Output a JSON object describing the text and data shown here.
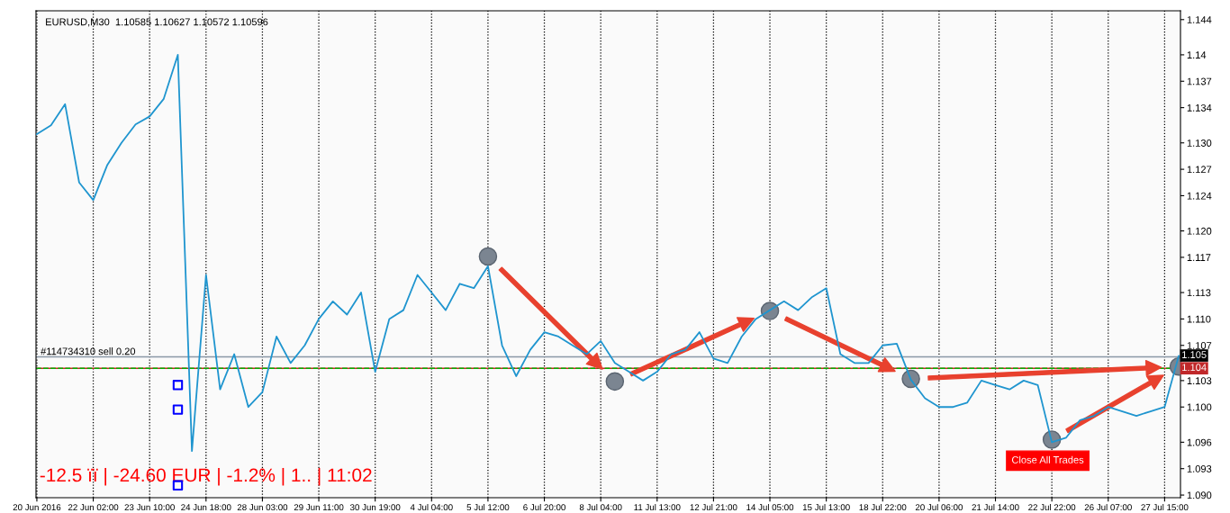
{
  "chart_data": {
    "type": "line",
    "categories": [
      "20 Jun 2016",
      null,
      null,
      null,
      "22 Jun 02:00",
      null,
      null,
      null,
      "23 Jun 10:00",
      null,
      null,
      null,
      "24 Jun 18:00",
      null,
      null,
      null,
      "28 Jun 03:00",
      null,
      null,
      null,
      "29 Jun 11:00",
      null,
      null,
      null,
      "30 Jun 19:00",
      null,
      null,
      null,
      "4 Jul 04:00",
      null,
      null,
      null,
      "5 Jul 12:00",
      null,
      null,
      null,
      "6 Jul 20:00",
      null,
      null,
      null,
      "8 Jul 04:00",
      null,
      null,
      null,
      "11 Jul 13:00",
      null,
      null,
      null,
      "12 Jul 21:00",
      null,
      null,
      null,
      "14 Jul 05:00",
      null,
      null,
      null,
      "15 Jul 13:00",
      null,
      null,
      null,
      "18 Jul 22:00",
      null,
      null,
      null,
      "20 Jul 06:00",
      null,
      null,
      null,
      "21 Jul 14:00",
      null,
      null,
      null,
      "22 Jul 22:00",
      null,
      null,
      null,
      "26 Jul 07:00",
      null,
      null,
      null,
      "27 Jul 15:00",
      null
    ],
    "series": [
      {
        "color": "#1f95cf",
        "values": [
          1.131,
          1.132,
          1.1344,
          1.1255,
          1.1235,
          1.1275,
          1.13,
          1.1321,
          1.133,
          1.135,
          1.14,
          1.095,
          1.115,
          1.102,
          1.106,
          1.1,
          1.1017,
          1.108,
          1.105,
          1.107,
          1.11,
          1.112,
          1.1105,
          1.113,
          1.104,
          1.11,
          1.111,
          1.115,
          1.113,
          1.111,
          1.114,
          1.1135,
          1.116,
          1.107,
          1.1035,
          1.1065,
          1.1085,
          1.108,
          1.107,
          1.106,
          1.1075,
          1.105,
          1.104,
          1.103,
          1.104,
          1.106,
          1.1065,
          1.1085,
          1.1055,
          1.105,
          1.108,
          1.11,
          1.111,
          1.112,
          1.111,
          1.1125,
          1.1135,
          1.106,
          1.105,
          1.105,
          1.107,
          1.1072,
          1.1031,
          1.101,
          1.1,
          1.1,
          1.1005,
          1.103,
          1.1025,
          1.102,
          1.103,
          1.1025,
          1.096,
          1.0965,
          1.0985,
          1.099,
          1.1,
          1.0995,
          1.099,
          1.0995,
          1.1,
          1.1058
        ]
      },
      {
        "type": "scatter",
        "color": "#7b8591",
        "marker": "circle",
        "values": [
          null,
          null,
          null,
          null,
          null,
          null,
          null,
          null,
          null,
          null,
          null,
          null,
          null,
          null,
          null,
          null,
          null,
          null,
          null,
          null,
          null,
          null,
          null,
          null,
          null,
          null,
          null,
          null,
          null,
          null,
          null,
          null,
          1.1171,
          null,
          null,
          null,
          null,
          null,
          null,
          null,
          null,
          1.1029,
          null,
          null,
          null,
          null,
          null,
          null,
          null,
          null,
          null,
          null,
          1.1109,
          null,
          null,
          null,
          null,
          null,
          null,
          null,
          null,
          null,
          1.1032,
          null,
          null,
          null,
          null,
          null,
          null,
          null,
          null,
          null,
          1.0963,
          null,
          null,
          null,
          null,
          null,
          null,
          null,
          null,
          1.1046
        ]
      },
      {
        "type": "scatter",
        "color": "#0000ff",
        "marker": "square",
        "values": [
          null,
          null,
          null,
          null,
          null,
          null,
          null,
          null,
          null,
          null,
          1.1025,
          null,
          null,
          null,
          null,
          null,
          null,
          null,
          null,
          null,
          null,
          null,
          null,
          null,
          null,
          null,
          null,
          null,
          null,
          null,
          null,
          null,
          null,
          null,
          null,
          null,
          null,
          null,
          null,
          null,
          null,
          null,
          null,
          null,
          null,
          null,
          null,
          null,
          null,
          null,
          null,
          null,
          null,
          null,
          null,
          null,
          null,
          null,
          null,
          null,
          null,
          null,
          null,
          null,
          null,
          null,
          null,
          null,
          null,
          null,
          null,
          null,
          null,
          null,
          null,
          null,
          null,
          null,
          null,
          null,
          null,
          null
        ]
      },
      {
        "type": "scatter",
        "color": "#0000ff",
        "marker": "square",
        "values": [
          null,
          null,
          null,
          null,
          null,
          null,
          null,
          null,
          null,
          null,
          1.0997,
          null,
          null,
          null,
          null,
          null,
          null,
          null,
          null,
          null,
          null,
          null,
          null,
          null,
          null,
          null,
          null,
          null,
          null,
          null,
          null,
          null,
          null,
          null,
          null,
          null,
          null,
          null,
          null,
          null,
          null,
          null,
          null,
          null,
          null,
          null,
          null,
          null,
          null,
          null,
          null,
          null,
          null,
          null,
          null,
          null,
          null,
          null,
          null,
          null,
          null,
          null,
          null,
          null,
          null,
          null,
          null,
          null,
          null,
          null,
          null,
          null,
          null,
          null,
          null,
          null,
          null,
          null,
          null,
          null,
          null,
          null
        ]
      },
      {
        "type": "scatter",
        "color": "#0000ff",
        "marker": "square",
        "values": [
          null,
          null,
          null,
          null,
          null,
          null,
          null,
          null,
          null,
          null,
          1.0911,
          null,
          null,
          null,
          null,
          null,
          null,
          null,
          null,
          null,
          null,
          null,
          null,
          null,
          null,
          null,
          null,
          null,
          null,
          null,
          null,
          null,
          null,
          null,
          null,
          null,
          null,
          null,
          null,
          null,
          null,
          null,
          null,
          null,
          null,
          null,
          null,
          null,
          null,
          null,
          null,
          null,
          null,
          null,
          null,
          null,
          null,
          null,
          null,
          null,
          null,
          null,
          null,
          null,
          null,
          null,
          null,
          null,
          null,
          null,
          null,
          null,
          null,
          null,
          null,
          null,
          null,
          null,
          null,
          null,
          null,
          null
        ]
      }
    ],
    "ylim": [
      1.0897,
      1.145
    ],
    "yticks": [
      1.144,
      1.14,
      1.137,
      1.134,
      {
        "value": 1.13,
        "label": "1.130"
      },
      1.127,
      1.124,
      {
        "value": 1.12,
        "label": "1.120"
      },
      1.117,
      1.113,
      {
        "value": 1.11,
        "label": "1.110"
      },
      1.107,
      1.103,
      {
        "value": 1.1,
        "label": "1.100"
      },
      1.096,
      1.093,
      {
        "value": 1.09,
        "label": "1.090"
      }
    ],
    "grid": "x",
    "ref_lines": [
      {
        "axis": "y",
        "value": 1.1057,
        "label": "#114734310 sell 0.20",
        "color": "#8a98a6",
        "line_style": "solid"
      },
      {
        "axis": "y",
        "value": 1.1044,
        "label": "1.104",
        "color": "#d02020",
        "line_style": "solid"
      },
      {
        "axis": "y",
        "value": 1.1044,
        "color": "#00b000",
        "line_style": "dashed"
      }
    ],
    "annotations": [
      "EURUSD,M30  1.10585 1.10627 1.10572 1.10596",
      "-12.5 ïï | -24.60 EUR | -1.2% | 1.. | 11:02",
      "Close All Trades",
      "1.105"
    ]
  }
}
